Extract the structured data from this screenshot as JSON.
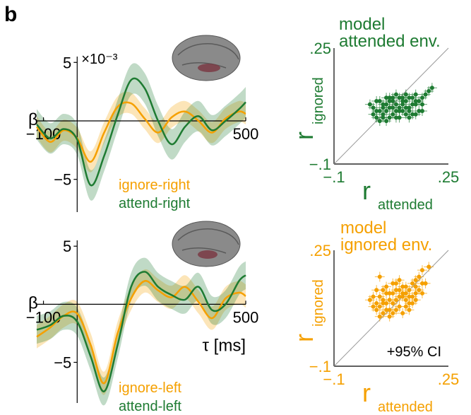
{
  "panel_label": "b",
  "colors": {
    "attended": "#1e7b32",
    "ignored": "#f5a000",
    "axis": "#000000",
    "ref_line": "#999999",
    "brain": "#7a7a7a"
  },
  "chart_data": [
    {
      "type": "line",
      "id": "trf-right",
      "exponent_label": "×10⁻³",
      "ylabel": "β",
      "xlim": [
        -120,
        500
      ],
      "ylim": [
        -7.8,
        5.5
      ],
      "x_ticks": [
        {
          "value": -100,
          "label": "−100"
        },
        {
          "value": 500,
          "label": "500"
        }
      ],
      "y_ticks": [
        {
          "value": 5,
          "label": "5"
        },
        {
          "value": -5,
          "label": "−5"
        }
      ],
      "x": [
        -120,
        -80,
        -40,
        0,
        40,
        80,
        120,
        160,
        200,
        240,
        280,
        320,
        360,
        400,
        440,
        480,
        500
      ],
      "series": [
        {
          "name": "ignore-right",
          "color_key": "ignored",
          "values": [
            -0.5,
            -1.8,
            -0.8,
            -1.5,
            -3.5,
            -1.0,
            1.2,
            1.5,
            0.2,
            -1.0,
            0.3,
            0.8,
            0.0,
            -1.0,
            0.2,
            0.8,
            0.6
          ],
          "ci": 0.9
        },
        {
          "name": "attend-right",
          "color_key": "attended",
          "values": [
            -0.3,
            -1.5,
            -0.7,
            -1.6,
            -5.5,
            -3.0,
            0.5,
            3.5,
            2.8,
            0.0,
            -2.0,
            -0.5,
            0.4,
            -0.8,
            0.0,
            1.0,
            1.6
          ],
          "ci": 1.3
        }
      ]
    },
    {
      "type": "line",
      "id": "trf-left",
      "ylabel": "β",
      "xlabel": "τ [ms]",
      "xlim": [
        -120,
        500
      ],
      "ylim": [
        -8.5,
        5.5
      ],
      "x_ticks": [
        {
          "value": -100,
          "label": "−100"
        },
        {
          "value": 500,
          "label": "500"
        }
      ],
      "y_ticks": [
        {
          "value": 5,
          "label": "5"
        },
        {
          "value": -5,
          "label": "−5"
        }
      ],
      "x": [
        -120,
        -80,
        -40,
        0,
        40,
        80,
        120,
        160,
        200,
        240,
        280,
        320,
        360,
        400,
        440,
        480,
        500
      ],
      "series": [
        {
          "name": "ignore-left",
          "color_key": "ignored",
          "values": [
            -2.8,
            -2.0,
            -1.0,
            -0.8,
            -3.5,
            -6.8,
            -2.5,
            0.5,
            2.0,
            1.2,
            0.6,
            1.5,
            0.2,
            -1.2,
            0.5,
            1.0,
            0.7
          ],
          "ci": 1.0
        },
        {
          "name": "attend-left",
          "color_key": "attended",
          "values": [
            -2.2,
            -1.8,
            -1.0,
            -1.5,
            -4.5,
            -7.5,
            -3.5,
            1.5,
            2.8,
            1.5,
            0.8,
            0.4,
            1.5,
            -0.5,
            0.0,
            2.0,
            2.5
          ],
          "ci": 1.2
        }
      ]
    },
    {
      "type": "scatter",
      "id": "model-attended",
      "title": "model attended env.",
      "title_lines": [
        "model",
        "attended env."
      ],
      "color_key": "attended",
      "xlabel_main": "r",
      "xlabel_sub": "attended",
      "ylabel_main": "r",
      "ylabel_sub": "ignored",
      "xlim": [
        -0.1,
        0.25
      ],
      "ylim": [
        -0.1,
        0.25
      ],
      "x_ticks": [
        {
          "value": -0.1,
          "label": "−.1"
        },
        {
          "value": 0.25,
          "label": ".25"
        }
      ],
      "y_ticks": [
        {
          "value": 0.25,
          "label": ".25"
        },
        {
          "value": -0.1,
          "label": "−.1"
        }
      ],
      "points": [
        [
          0.02,
          0.07
        ],
        [
          0.04,
          0.06
        ],
        [
          0.06,
          0.08
        ],
        [
          0.08,
          0.05
        ],
        [
          0.1,
          0.07
        ],
        [
          0.12,
          0.09
        ],
        [
          0.05,
          0.04
        ],
        [
          0.07,
          0.1
        ],
        [
          0.09,
          0.08
        ],
        [
          0.11,
          0.06
        ],
        [
          0.13,
          0.07
        ],
        [
          0.15,
          0.08
        ],
        [
          0.03,
          0.09
        ],
        [
          0.06,
          0.06
        ],
        [
          0.08,
          0.09
        ],
        [
          0.1,
          0.04
        ],
        [
          0.12,
          0.05
        ],
        [
          0.14,
          0.1
        ],
        [
          0.16,
          0.06
        ],
        [
          0.04,
          0.03
        ],
        [
          0.07,
          0.07
        ],
        [
          0.09,
          0.11
        ],
        [
          0.11,
          0.09
        ],
        [
          0.05,
          0.08
        ],
        [
          0.13,
          0.04
        ],
        [
          0.15,
          0.11
        ],
        [
          0.17,
          0.08
        ],
        [
          0.02,
          0.05
        ],
        [
          0.06,
          0.1
        ],
        [
          0.08,
          0.07
        ],
        [
          0.1,
          0.1
        ],
        [
          0.12,
          0.07
        ],
        [
          0.14,
          0.05
        ],
        [
          0.16,
          0.09
        ],
        [
          0.18,
          0.11
        ],
        [
          0.2,
          0.13
        ],
        [
          0.19,
          0.12
        ],
        [
          0.03,
          0.06
        ],
        [
          0.05,
          0.05
        ],
        [
          0.07,
          0.04
        ],
        [
          0.09,
          0.06
        ],
        [
          0.11,
          0.08
        ],
        [
          0.13,
          0.1
        ],
        [
          0.15,
          0.05
        ],
        [
          0.17,
          0.06
        ],
        [
          0.01,
          0.08
        ],
        [
          0.04,
          0.09
        ],
        [
          0.06,
          0.03
        ],
        [
          0.08,
          0.1
        ],
        [
          0.1,
          0.06
        ],
        [
          0.12,
          0.11
        ],
        [
          0.14,
          0.08
        ],
        [
          0.05,
          0.07
        ],
        [
          0.07,
          0.09
        ],
        [
          0.09,
          0.04
        ],
        [
          0.11,
          0.1
        ],
        [
          0.13,
          0.06
        ],
        [
          0.15,
          0.09
        ],
        [
          0.03,
          0.04
        ],
        [
          0.17,
          0.1
        ]
      ]
    },
    {
      "type": "scatter",
      "id": "model-ignored",
      "title": "model ignored env.",
      "title_lines": [
        "model",
        "ignored env."
      ],
      "color_key": "ignored",
      "xlabel_main": "r",
      "xlabel_sub": "attended",
      "ylabel_main": "r",
      "ylabel_sub": "ignored",
      "legend": "+95% CI",
      "xlim": [
        -0.1,
        0.25
      ],
      "ylim": [
        -0.1,
        0.25
      ],
      "x_ticks": [
        {
          "value": -0.1,
          "label": "−.1"
        },
        {
          "value": 0.25,
          "label": ".25"
        }
      ],
      "y_ticks": [
        {
          "value": 0.25,
          "label": ".25"
        },
        {
          "value": -0.1,
          "label": "−.1"
        }
      ],
      "points": [
        [
          0.02,
          0.11
        ],
        [
          0.04,
          0.08
        ],
        [
          0.06,
          0.12
        ],
        [
          0.08,
          0.09
        ],
        [
          0.1,
          0.13
        ],
        [
          0.12,
          0.1
        ],
        [
          0.05,
          0.06
        ],
        [
          0.07,
          0.1
        ],
        [
          0.09,
          0.07
        ],
        [
          0.11,
          0.11
        ],
        [
          0.13,
          0.09
        ],
        [
          0.15,
          0.14
        ],
        [
          0.03,
          0.13
        ],
        [
          0.06,
          0.09
        ],
        [
          0.08,
          0.12
        ],
        [
          0.1,
          0.08
        ],
        [
          0.12,
          0.14
        ],
        [
          0.14,
          0.11
        ],
        [
          0.16,
          0.13
        ],
        [
          0.04,
          0.05
        ],
        [
          0.07,
          0.07
        ],
        [
          0.09,
          0.15
        ],
        [
          0.11,
          0.12
        ],
        [
          0.05,
          0.1
        ],
        [
          0.13,
          0.07
        ],
        [
          0.15,
          0.16
        ],
        [
          0.17,
          0.12
        ],
        [
          0.02,
          0.08
        ],
        [
          0.06,
          0.14
        ],
        [
          0.08,
          0.06
        ],
        [
          0.1,
          0.16
        ],
        [
          0.12,
          0.12
        ],
        [
          0.14,
          0.09
        ],
        [
          0.16,
          0.17
        ],
        [
          0.18,
          0.15
        ],
        [
          0.19,
          0.2
        ],
        [
          0.17,
          0.19
        ],
        [
          0.03,
          0.09
        ],
        [
          0.05,
          0.13
        ],
        [
          0.07,
          0.05
        ],
        [
          0.09,
          0.1
        ],
        [
          0.11,
          0.06
        ],
        [
          0.13,
          0.13
        ],
        [
          0.15,
          0.1
        ],
        [
          0.17,
          0.15
        ],
        [
          0.01,
          0.1
        ],
        [
          0.04,
          0.11
        ],
        [
          0.06,
          0.07
        ],
        [
          0.08,
          0.15
        ],
        [
          0.1,
          0.11
        ],
        [
          0.12,
          0.08
        ],
        [
          0.14,
          0.15
        ],
        [
          0.05,
          0.09
        ],
        [
          0.07,
          0.12
        ],
        [
          0.09,
          0.13
        ],
        [
          0.11,
          0.14
        ],
        [
          0.13,
          0.11
        ],
        [
          0.15,
          0.12
        ],
        [
          0.03,
          0.07
        ],
        [
          0.04,
          0.17
        ]
      ]
    }
  ]
}
